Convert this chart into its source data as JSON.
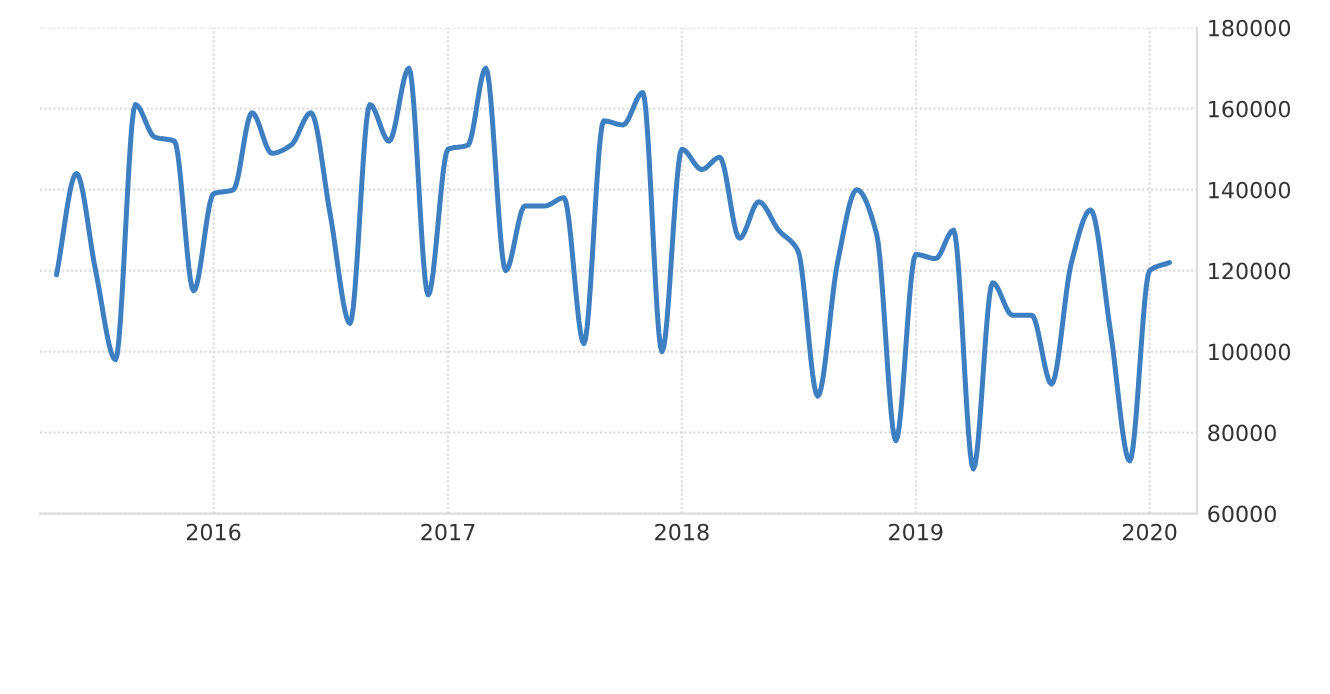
{
  "chart_data": {
    "type": "line",
    "x": [
      "2015-05",
      "2015-06",
      "2015-07",
      "2015-08",
      "2015-09",
      "2015-10",
      "2015-11",
      "2015-12",
      "2016-01",
      "2016-02",
      "2016-03",
      "2016-04",
      "2016-05",
      "2016-06",
      "2016-07",
      "2016-08",
      "2016-09",
      "2016-10",
      "2016-11",
      "2016-12",
      "2017-01",
      "2017-02",
      "2017-03",
      "2017-04",
      "2017-05",
      "2017-06",
      "2017-07",
      "2017-08",
      "2017-09",
      "2017-10",
      "2017-11",
      "2017-12",
      "2018-01",
      "2018-02",
      "2018-03",
      "2018-04",
      "2018-05",
      "2018-06",
      "2018-07",
      "2018-08",
      "2018-09",
      "2018-10",
      "2018-11",
      "2018-12",
      "2019-01",
      "2019-02",
      "2019-03",
      "2019-04",
      "2019-05",
      "2019-06",
      "2019-07",
      "2019-08",
      "2019-09",
      "2019-10",
      "2019-11",
      "2019-12",
      "2020-01",
      "2020-02"
    ],
    "series": [
      {
        "color": "#3d7fc1",
        "values": [
          119000,
          144000,
          120000,
          98000,
          161000,
          153000,
          152000,
          115000,
          139000,
          140000,
          159000,
          149000,
          151000,
          159000,
          134000,
          107000,
          161000,
          152000,
          170000,
          114000,
          150000,
          151000,
          170000,
          120000,
          136000,
          136000,
          138000,
          102000,
          157000,
          156000,
          164000,
          100000,
          150000,
          145000,
          148000,
          128000,
          137000,
          130000,
          125000,
          89000,
          122000,
          140000,
          129000,
          78000,
          124000,
          123000,
          130000,
          71000,
          117000,
          109000,
          109000,
          92000,
          122000,
          135000,
          105000,
          73000,
          120000,
          122000
        ]
      }
    ],
    "xlim": [
      "2015-04-05",
      "2020-03-15"
    ],
    "xticks": [
      {
        "value": "2016-01-01",
        "label": "2016"
      },
      {
        "value": "2017-01-01",
        "label": "2017"
      },
      {
        "value": "2018-01-01",
        "label": "2018"
      },
      {
        "value": "2019-01-01",
        "label": "2019"
      },
      {
        "value": "2020-01-01",
        "label": "2020"
      }
    ],
    "ylim": [
      60000,
      180000
    ],
    "yticks": [
      60000,
      80000,
      100000,
      120000,
      140000,
      160000,
      180000
    ],
    "grid": true,
    "marker": "none",
    "line_style": "solid"
  }
}
